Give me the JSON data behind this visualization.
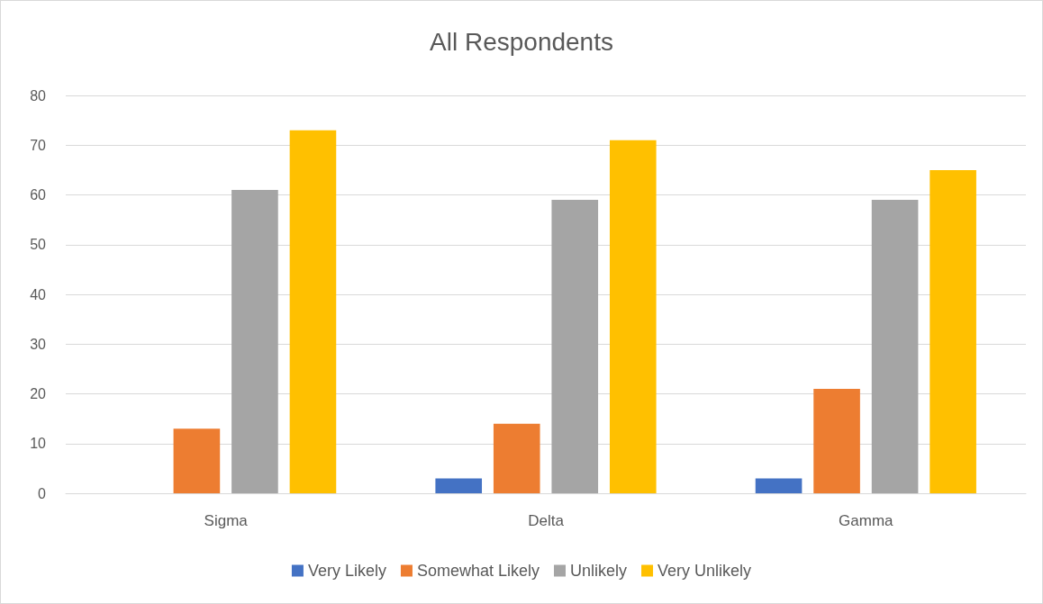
{
  "chart_data": {
    "type": "bar",
    "title": "All Respondents",
    "categories": [
      "Sigma",
      "Delta",
      "Gamma"
    ],
    "series": [
      {
        "name": "Very Likely",
        "color": "#4472c4",
        "values": [
          0,
          3,
          3
        ]
      },
      {
        "name": "Somewhat Likely",
        "color": "#ed7d31",
        "values": [
          13,
          14,
          21
        ]
      },
      {
        "name": "Unlikely",
        "color": "#a5a5a5",
        "values": [
          61,
          59,
          59
        ]
      },
      {
        "name": "Very Unlikely",
        "color": "#ffc000",
        "values": [
          73,
          71,
          65
        ]
      }
    ],
    "ylim": [
      0,
      80
    ],
    "yticks": [
      0,
      10,
      20,
      30,
      40,
      50,
      60,
      70,
      80
    ],
    "grid": "y",
    "legend": "bottom"
  }
}
